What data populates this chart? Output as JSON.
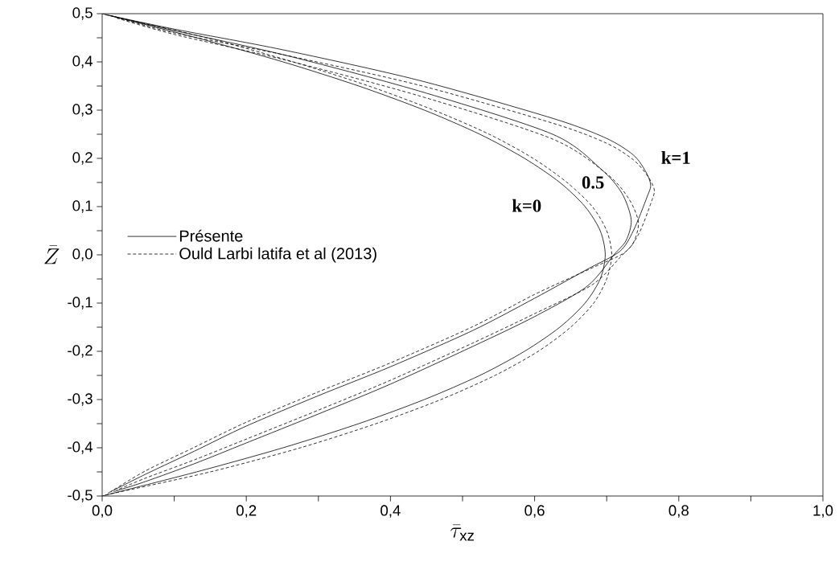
{
  "chart_data": {
    "type": "line",
    "xlabel": "\\bar{\\tau}_{\\mathrm{xz}}",
    "ylabel": "\\bar{Z}",
    "xlim": [
      0,
      1
    ],
    "ylim": [
      -0.5,
      0.5
    ],
    "xticks": [
      {
        "value": 0,
        "label": "0,0"
      },
      {
        "value": 0.1,
        "label": null
      },
      {
        "value": 0.2,
        "label": "0,2"
      },
      {
        "value": 0.3,
        "label": null
      },
      {
        "value": 0.4,
        "label": "0,4"
      },
      {
        "value": 0.5,
        "label": null
      },
      {
        "value": 0.6,
        "label": "0,6"
      },
      {
        "value": 0.7,
        "label": null
      },
      {
        "value": 0.8,
        "label": "0,8"
      },
      {
        "value": 0.9,
        "label": null
      },
      {
        "value": 1,
        "label": "1,0"
      }
    ],
    "yticks": [
      {
        "value": -0.5,
        "label": "-0,5"
      },
      {
        "value": -0.45,
        "label": null
      },
      {
        "value": -0.4,
        "label": "-0,4"
      },
      {
        "value": -0.35,
        "label": null
      },
      {
        "value": -0.3,
        "label": "-0,3"
      },
      {
        "value": -0.25,
        "label": null
      },
      {
        "value": -0.2,
        "label": "-0,2"
      },
      {
        "value": -0.15,
        "label": null
      },
      {
        "value": -0.1,
        "label": "-0,1"
      },
      {
        "value": -0.05,
        "label": null
      },
      {
        "value": 0,
        "label": "0,0"
      },
      {
        "value": 0.05,
        "label": null
      },
      {
        "value": 0.1,
        "label": "0,1"
      },
      {
        "value": 0.15,
        "label": null
      },
      {
        "value": 0.2,
        "label": "0,2"
      },
      {
        "value": 0.25,
        "label": null
      },
      {
        "value": 0.3,
        "label": "0,3"
      },
      {
        "value": 0.35,
        "label": null
      },
      {
        "value": 0.4,
        "label": "0,4"
      },
      {
        "value": 0.45,
        "label": null
      },
      {
        "value": 0.5,
        "label": "0,5"
      }
    ],
    "legend": "left",
    "series": [
      {
        "name": "Présente",
        "color": "#000000",
        "line_style": "solid",
        "x": [
          0,
          0.131,
          0.251,
          0.356,
          0.447,
          0.524,
          0.586,
          0.635,
          0.67,
          0.691,
          0.698,
          0.691,
          0.67,
          0.635,
          0.586,
          0.524,
          0.447,
          0.356,
          0.251,
          0.131,
          0
        ],
        "values": [
          0.5,
          0.45,
          0.4,
          0.35,
          0.3,
          0.25,
          0.2,
          0.15,
          0.1,
          0.05,
          0,
          -0.05,
          -0.1,
          -0.15,
          -0.2,
          -0.25,
          -0.3,
          -0.35,
          -0.4,
          -0.45,
          -0.5
        ]
      },
      {
        "name": "Ould Larbi latifa et al (2013)",
        "color": "#000000",
        "line_style": "dashed",
        "x": [
          0.004,
          0.145,
          0.265,
          0.37,
          0.46,
          0.537,
          0.598,
          0.645,
          0.68,
          0.7,
          0.707,
          0.7,
          0.682,
          0.65,
          0.605,
          0.545,
          0.47,
          0.38,
          0.275,
          0.15,
          0.004
        ],
        "values": [
          0.498,
          0.45,
          0.4,
          0.35,
          0.3,
          0.25,
          0.2,
          0.15,
          0.1,
          0.05,
          0,
          -0.05,
          -0.1,
          -0.15,
          -0.2,
          -0.25,
          -0.3,
          -0.35,
          -0.4,
          -0.45,
          -0.498
        ]
      },
      {
        "color": "#000000",
        "line_style": "solid",
        "x": [
          0.008,
          0.1,
          0.251,
          0.439,
          0.625,
          0.699,
          0.737,
          0.754,
          0.761,
          0.756,
          0.737,
          0.718,
          0.673,
          0.6,
          0.514,
          0.4,
          0.3,
          0.2,
          0.128,
          0.06,
          0.008
        ],
        "values": [
          0.497,
          0.468,
          0.425,
          0.362,
          0.283,
          0.242,
          0.207,
          0.173,
          0.145,
          0.12,
          0.05,
          0.007,
          -0.03,
          -0.09,
          -0.157,
          -0.232,
          -0.292,
          -0.355,
          -0.407,
          -0.455,
          -0.494
        ]
      },
      {
        "color": "#000000",
        "line_style": "dashed",
        "x": [
          0.012,
          0.1,
          0.251,
          0.439,
          0.625,
          0.699,
          0.737,
          0.757,
          0.766,
          0.762,
          0.745,
          0.725,
          0.68,
          0.6,
          0.514,
          0.4,
          0.3,
          0.2,
          0.128,
          0.06,
          0.012
        ],
        "values": [
          0.496,
          0.46,
          0.415,
          0.352,
          0.273,
          0.232,
          0.197,
          0.163,
          0.135,
          0.11,
          0.045,
          0.005,
          -0.027,
          -0.082,
          -0.149,
          -0.224,
          -0.284,
          -0.347,
          -0.399,
          -0.448,
          -0.491
        ]
      },
      {
        "color": "#000000",
        "line_style": "solid",
        "x": [
          0.016,
          0.1,
          0.251,
          0.439,
          0.625,
          0.692,
          0.721,
          0.734,
          0.727,
          0.71,
          0.673,
          0.6,
          0.514,
          0.4,
          0.3,
          0.2,
          0.128,
          0.06,
          0.016
        ],
        "values": [
          0.494,
          0.465,
          0.415,
          0.34,
          0.25,
          0.178,
          0.128,
          0.073,
          0.03,
          0,
          -0.065,
          -0.128,
          -0.19,
          -0.268,
          -0.33,
          -0.39,
          -0.433,
          -0.47,
          -0.491
        ]
      },
      {
        "color": "#000000",
        "line_style": "dashed",
        "x": [
          0.02,
          0.1,
          0.251,
          0.439,
          0.625,
          0.7,
          0.73,
          0.744,
          0.737,
          0.72,
          0.68,
          0.6,
          0.514,
          0.4,
          0.3,
          0.2,
          0.128,
          0.06,
          0.02
        ],
        "values": [
          0.491,
          0.457,
          0.405,
          0.33,
          0.24,
          0.168,
          0.118,
          0.068,
          0.025,
          -0.003,
          -0.062,
          -0.122,
          -0.183,
          -0.26,
          -0.322,
          -0.382,
          -0.425,
          -0.463,
          -0.488
        ]
      }
    ],
    "annotations": [
      "k=0",
      "0.5",
      "k=1"
    ]
  }
}
